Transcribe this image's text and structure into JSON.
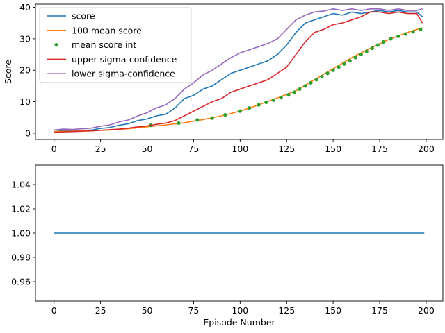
{
  "chart_data": [
    {
      "type": "line",
      "title": "",
      "xlabel": "",
      "ylabel": "Score",
      "xlim": [
        -10,
        209
      ],
      "ylim": [
        -2,
        41
      ],
      "xticks": [
        0,
        25,
        50,
        75,
        100,
        125,
        150,
        175,
        200
      ],
      "yticks": [
        0,
        10,
        20,
        30,
        40
      ],
      "legend_position": "top-left",
      "series": [
        {
          "name": "score",
          "color": "#1f77b4",
          "style": "line",
          "x": [
            0,
            5,
            10,
            15,
            20,
            25,
            30,
            35,
            40,
            45,
            50,
            55,
            60,
            65,
            70,
            75,
            80,
            85,
            90,
            95,
            100,
            105,
            110,
            115,
            120,
            125,
            130,
            135,
            140,
            145,
            150,
            155,
            160,
            165,
            170,
            175,
            180,
            185,
            190,
            195,
            198
          ],
          "values": [
            0.5,
            0.8,
            0.7,
            0.9,
            1.0,
            1.5,
            1.8,
            2.5,
            3.0,
            4.0,
            4.5,
            5.5,
            6.0,
            8.0,
            11.0,
            12.0,
            14.0,
            15.0,
            17.0,
            19.0,
            20.0,
            21.0,
            22.0,
            23.0,
            25.0,
            28.0,
            32.0,
            35.0,
            36.0,
            37.0,
            38.0,
            37.5,
            38.5,
            38.0,
            38.5,
            39.0,
            38.5,
            39.0,
            38.5,
            38.5,
            37.0
          ]
        },
        {
          "name": "100 mean score",
          "color": "#ff7f0e",
          "style": "line",
          "x": [
            0,
            10,
            20,
            30,
            40,
            50,
            60,
            70,
            80,
            90,
            100,
            110,
            120,
            130,
            140,
            150,
            160,
            170,
            180,
            190,
            198
          ],
          "values": [
            0.5,
            0.6,
            0.8,
            1.0,
            1.4,
            2.0,
            2.6,
            3.3,
            4.3,
            5.5,
            7.0,
            9.0,
            11.2,
            13.5,
            17.0,
            20.5,
            24.0,
            27.0,
            29.8,
            32.0,
            33.5
          ]
        },
        {
          "name": "mean score int",
          "color": "#2ca02c",
          "style": "points",
          "x": [
            52,
            67,
            77,
            85,
            92,
            100,
            105,
            110,
            114,
            118,
            122,
            126,
            129,
            132,
            135,
            138,
            141,
            144,
            147,
            150,
            153,
            156,
            159,
            162,
            165,
            168,
            171,
            174,
            177,
            181,
            185,
            189,
            193,
            197
          ],
          "values": [
            2.5,
            3.2,
            4.2,
            4.8,
            5.8,
            7.0,
            8.0,
            9.0,
            9.8,
            10.5,
            11.3,
            12.2,
            13.0,
            14.0,
            15.0,
            16.0,
            17.0,
            18.0,
            19.0,
            20.0,
            21.0,
            22.0,
            23.0,
            24.0,
            25.0,
            26.0,
            27.0,
            28.0,
            29.0,
            30.0,
            30.8,
            31.5,
            32.2,
            33.0
          ]
        },
        {
          "name": "upper sigma-confidence",
          "color": "#d62728",
          "style": "line",
          "x": [
            0,
            5,
            10,
            15,
            20,
            25,
            30,
            35,
            40,
            45,
            50,
            55,
            60,
            65,
            70,
            75,
            80,
            85,
            90,
            95,
            100,
            105,
            110,
            115,
            120,
            125,
            130,
            135,
            140,
            145,
            150,
            155,
            160,
            165,
            170,
            175,
            180,
            185,
            190,
            195,
            198
          ],
          "values": [
            0.2,
            0.4,
            0.5,
            0.6,
            0.7,
            0.9,
            1.1,
            1.3,
            1.6,
            2.0,
            2.3,
            2.8,
            3.2,
            4.0,
            5.5,
            7.0,
            8.5,
            10.0,
            11.0,
            13.0,
            14.0,
            15.0,
            16.0,
            17.0,
            19.0,
            21.0,
            25.0,
            29.0,
            32.0,
            33.0,
            34.5,
            35.0,
            36.0,
            37.0,
            38.5,
            38.5,
            38.0,
            38.5,
            38.0,
            38.0,
            35.0
          ]
        },
        {
          "name": "lower sigma-confidence",
          "color": "#9467bd",
          "style": "line",
          "x": [
            0,
            5,
            10,
            15,
            20,
            25,
            30,
            35,
            40,
            45,
            50,
            55,
            60,
            65,
            70,
            75,
            80,
            85,
            90,
            95,
            100,
            105,
            110,
            115,
            120,
            125,
            130,
            135,
            140,
            145,
            150,
            155,
            160,
            165,
            170,
            175,
            180,
            185,
            190,
            195,
            198
          ],
          "values": [
            1.0,
            1.3,
            1.2,
            1.4,
            1.6,
            2.2,
            2.6,
            3.6,
            4.2,
            5.5,
            6.5,
            8.0,
            9.0,
            11.0,
            14.0,
            16.0,
            18.5,
            20.0,
            22.0,
            24.0,
            25.5,
            26.5,
            27.5,
            28.5,
            30.0,
            33.0,
            36.0,
            37.5,
            38.5,
            38.8,
            39.5,
            39.0,
            39.5,
            39.0,
            39.5,
            39.5,
            39.0,
            39.5,
            39.0,
            39.0,
            39.5
          ]
        }
      ]
    },
    {
      "type": "line",
      "title": "",
      "xlabel": "Episode Number",
      "ylabel": "",
      "xlim": [
        -10,
        209
      ],
      "ylim": [
        0.944,
        1.056
      ],
      "xticks": [
        0,
        25,
        50,
        75,
        100,
        125,
        150,
        175,
        200
      ],
      "yticks": [
        0.96,
        0.98,
        1.0,
        1.02,
        1.04
      ],
      "ytick_labels": [
        "0.96",
        "0.98",
        "1.00",
        "1.02",
        "1.04"
      ],
      "series": [
        {
          "color": "#1f77b4",
          "style": "line",
          "x": [
            0,
            199
          ],
          "values": [
            1.0,
            1.0
          ]
        }
      ]
    }
  ]
}
